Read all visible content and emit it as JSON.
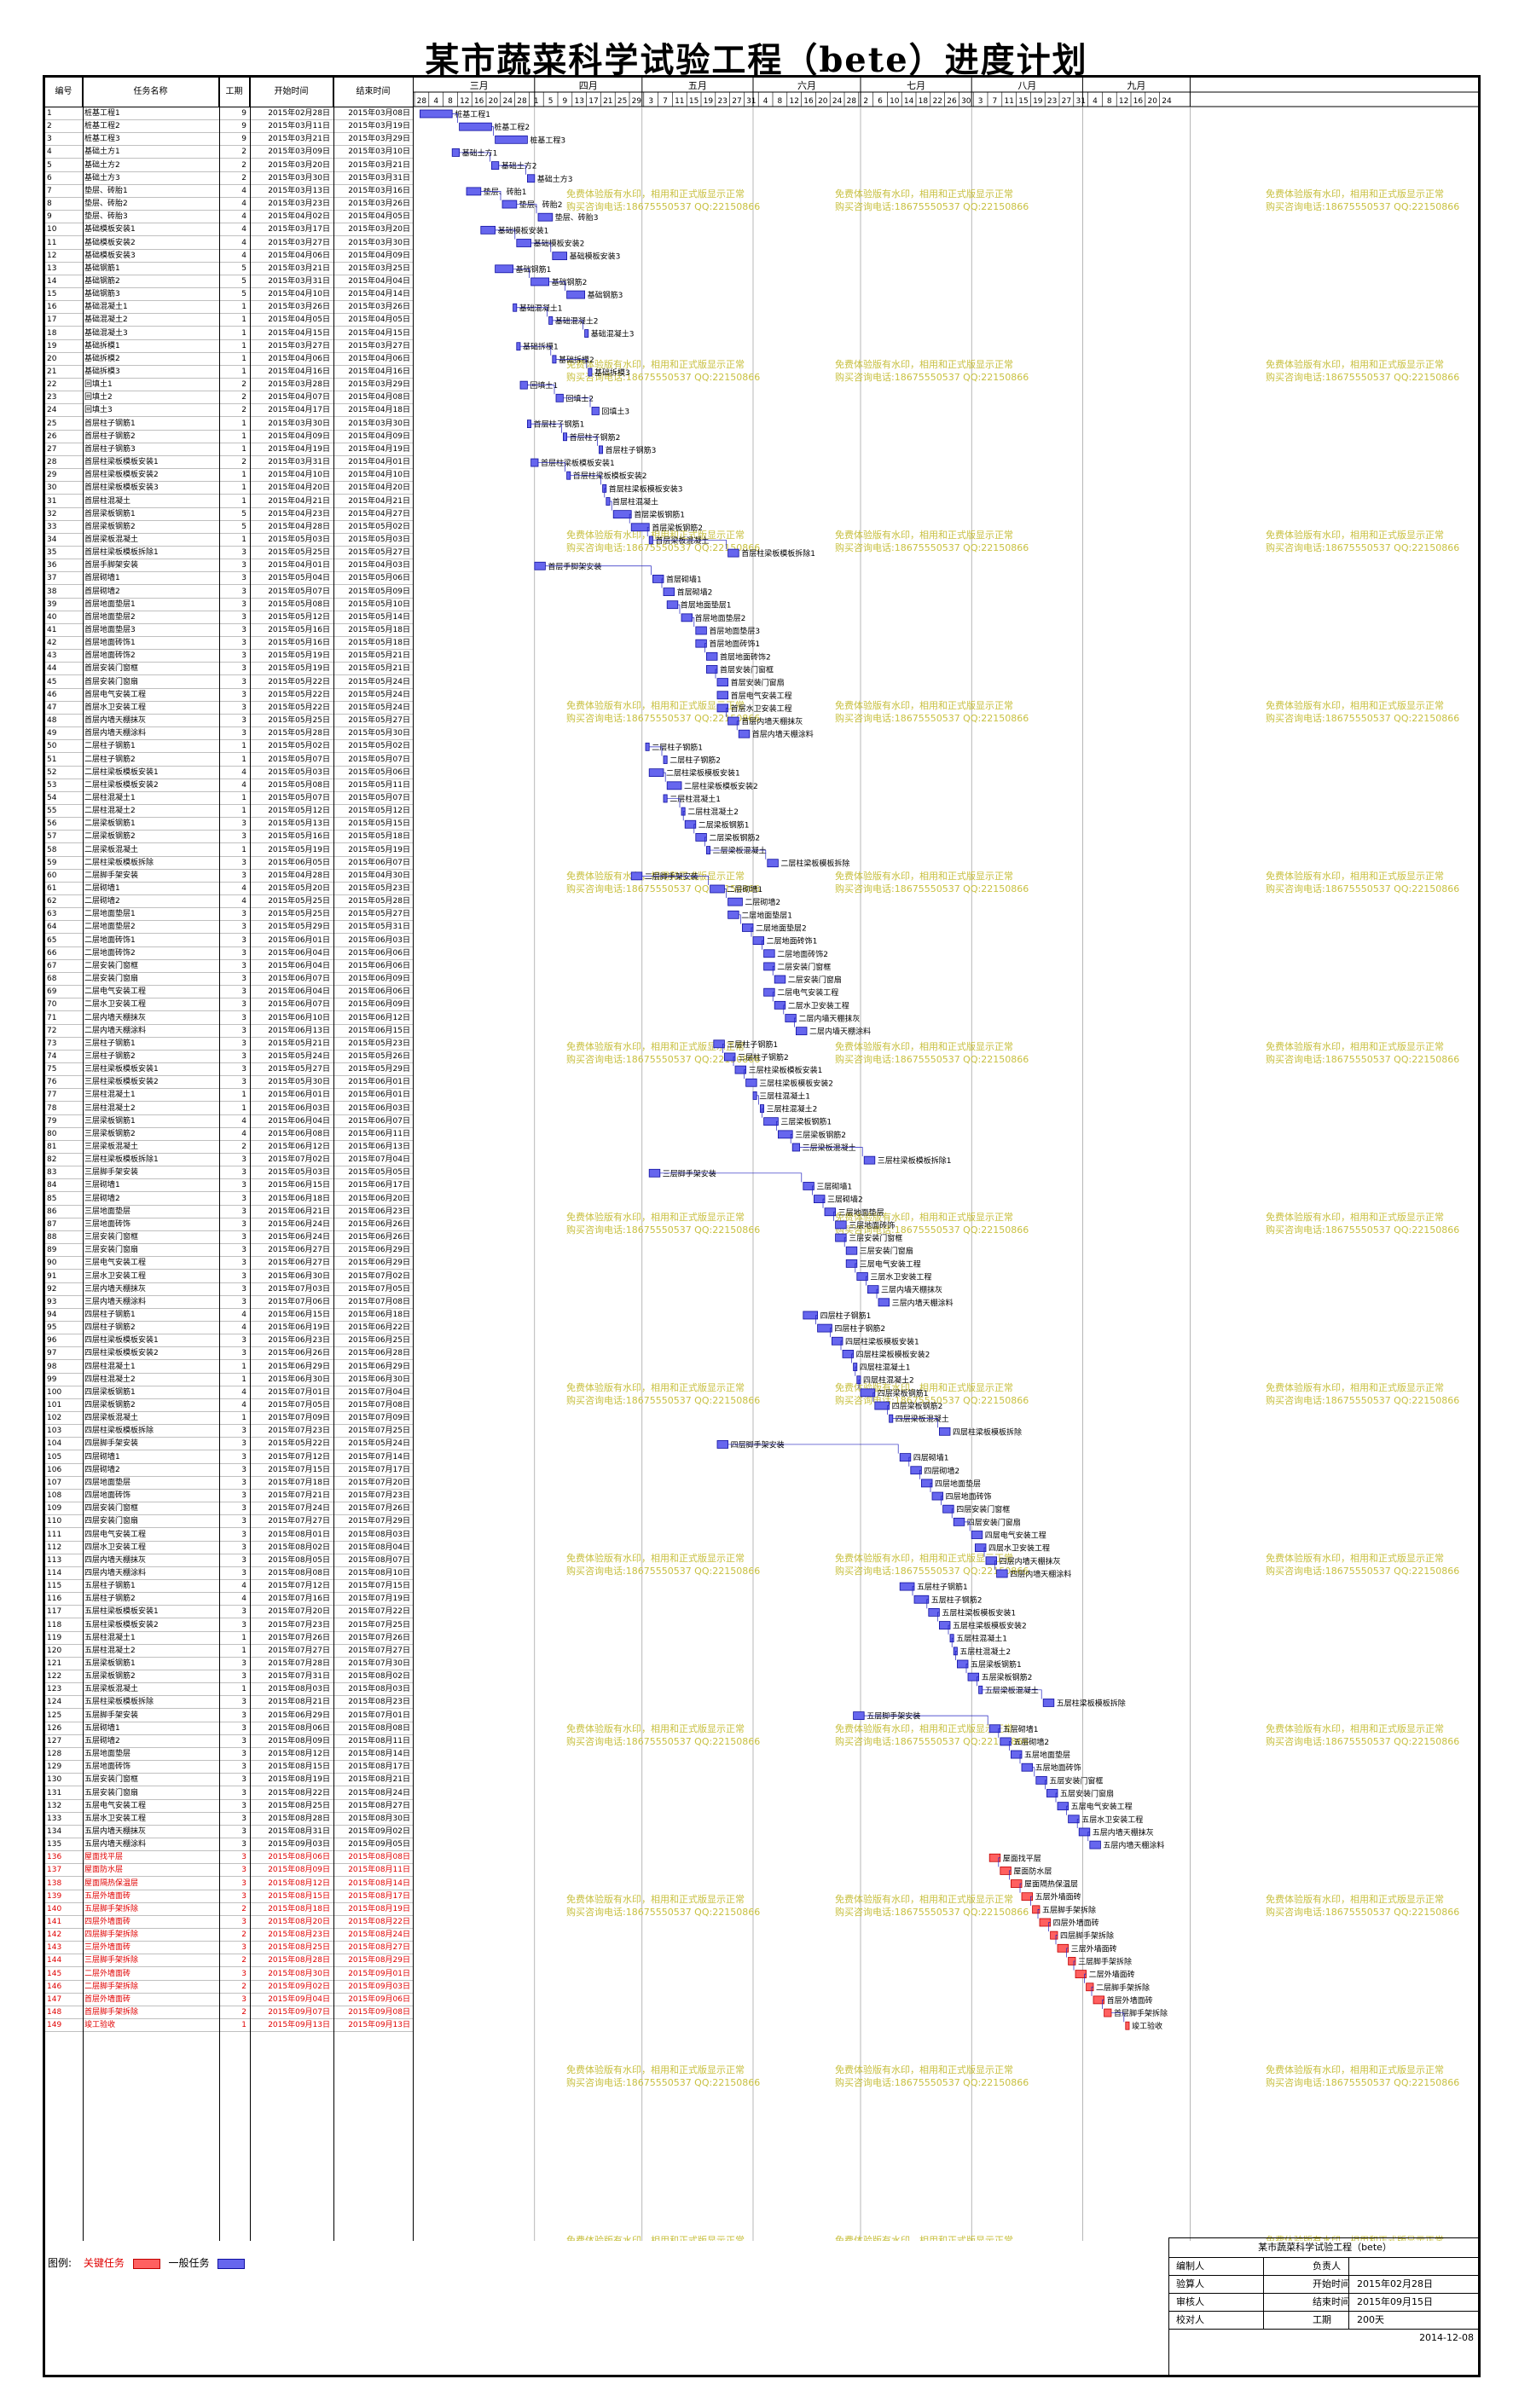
{
  "title": "某市蔬菜科学试验工程（bete）进度计划",
  "columns": {
    "id": "编号",
    "name": "任务名称",
    "dur": "工期",
    "start": "开始时间",
    "end": "结束时间"
  },
  "months": [
    "三月",
    "四月",
    "五月",
    "六月",
    "七月",
    "八月",
    "九月"
  ],
  "day_ticks": [
    "28",
    "4",
    "8",
    "12",
    "16",
    "20",
    "24",
    "28",
    "1",
    "5",
    "9",
    "13",
    "17",
    "21",
    "25",
    "29",
    "3",
    "7",
    "11",
    "15",
    "19",
    "23",
    "27",
    "31",
    "4",
    "8",
    "12",
    "16",
    "20",
    "24",
    "28",
    "2",
    "6",
    "10",
    "14",
    "18",
    "22",
    "26",
    "30",
    "3",
    "7",
    "11",
    "15",
    "19",
    "23",
    "27",
    "31",
    "4",
    "8",
    "12",
    "16",
    "20",
    "24"
  ],
  "watermark": [
    "免费体验版有水印，相用和正式版显示正常",
    "购买咨询电话:18675550537 QQ:22150866"
  ],
  "colors": {
    "normal": "#6666ee",
    "normal_stroke": "#1010a0",
    "critical": "#ff6060",
    "critical_stroke": "#c00000",
    "watermark": "#c8c040",
    "link": "#2020c0"
  },
  "tasks": [
    [
      "1",
      "桩基工程1",
      "9",
      "2015年02月28日",
      "2015年03月08日",
      0
    ],
    [
      "2",
      "桩基工程2",
      "9",
      "2015年03月11日",
      "2015年03月19日",
      0
    ],
    [
      "3",
      "桩基工程3",
      "9",
      "2015年03月21日",
      "2015年03月29日",
      0
    ],
    [
      "4",
      "基础土方1",
      "2",
      "2015年03月09日",
      "2015年03月10日",
      0
    ],
    [
      "5",
      "基础土方2",
      "2",
      "2015年03月20日",
      "2015年03月21日",
      0
    ],
    [
      "6",
      "基础土方3",
      "2",
      "2015年03月30日",
      "2015年03月31日",
      0
    ],
    [
      "7",
      "垫层、砖胎1",
      "4",
      "2015年03月13日",
      "2015年03月16日",
      0
    ],
    [
      "8",
      "垫层、砖胎2",
      "4",
      "2015年03月23日",
      "2015年03月26日",
      0
    ],
    [
      "9",
      "垫层、砖胎3",
      "4",
      "2015年04月02日",
      "2015年04月05日",
      0
    ],
    [
      "10",
      "基础模板安装1",
      "4",
      "2015年03月17日",
      "2015年03月20日",
      0
    ],
    [
      "11",
      "基础模板安装2",
      "4",
      "2015年03月27日",
      "2015年03月30日",
      0
    ],
    [
      "12",
      "基础模板安装3",
      "4",
      "2015年04月06日",
      "2015年04月09日",
      0
    ],
    [
      "13",
      "基础钢筋1",
      "5",
      "2015年03月21日",
      "2015年03月25日",
      0
    ],
    [
      "14",
      "基础钢筋2",
      "5",
      "2015年03月31日",
      "2015年04月04日",
      0
    ],
    [
      "15",
      "基础钢筋3",
      "5",
      "2015年04月10日",
      "2015年04月14日",
      0
    ],
    [
      "16",
      "基础混凝土1",
      "1",
      "2015年03月26日",
      "2015年03月26日",
      0
    ],
    [
      "17",
      "基础混凝土2",
      "1",
      "2015年04月05日",
      "2015年04月05日",
      0
    ],
    [
      "18",
      "基础混凝土3",
      "1",
      "2015年04月15日",
      "2015年04月15日",
      0
    ],
    [
      "19",
      "基础拆模1",
      "1",
      "2015年03月27日",
      "2015年03月27日",
      0
    ],
    [
      "20",
      "基础拆模2",
      "1",
      "2015年04月06日",
      "2015年04月06日",
      0
    ],
    [
      "21",
      "基础拆模3",
      "1",
      "2015年04月16日",
      "2015年04月16日",
      0
    ],
    [
      "22",
      "回填土1",
      "2",
      "2015年03月28日",
      "2015年03月29日",
      0
    ],
    [
      "23",
      "回填土2",
      "2",
      "2015年04月07日",
      "2015年04月08日",
      0
    ],
    [
      "24",
      "回填土3",
      "2",
      "2015年04月17日",
      "2015年04月18日",
      0
    ],
    [
      "25",
      "首层柱子钢筋1",
      "1",
      "2015年03月30日",
      "2015年03月30日",
      0
    ],
    [
      "26",
      "首层柱子钢筋2",
      "1",
      "2015年04月09日",
      "2015年04月09日",
      0
    ],
    [
      "27",
      "首层柱子钢筋3",
      "1",
      "2015年04月19日",
      "2015年04月19日",
      0
    ],
    [
      "28",
      "首层柱梁板模板安装1",
      "2",
      "2015年03月31日",
      "2015年04月01日",
      0
    ],
    [
      "29",
      "首层柱梁板模板安装2",
      "1",
      "2015年04月10日",
      "2015年04月10日",
      0
    ],
    [
      "30",
      "首层柱梁板模板安装3",
      "1",
      "2015年04月20日",
      "2015年04月20日",
      0
    ],
    [
      "31",
      "首层柱混凝土",
      "1",
      "2015年04月21日",
      "2015年04月21日",
      0
    ],
    [
      "32",
      "首层梁板钢筋1",
      "5",
      "2015年04月23日",
      "2015年04月27日",
      0
    ],
    [
      "33",
      "首层梁板钢筋2",
      "5",
      "2015年04月28日",
      "2015年05月02日",
      0
    ],
    [
      "34",
      "首层梁板混凝土",
      "1",
      "2015年05月03日",
      "2015年05月03日",
      0
    ],
    [
      "35",
      "首层柱梁板模板拆除1",
      "3",
      "2015年05月25日",
      "2015年05月27日",
      0
    ],
    [
      "36",
      "首层手脚架安装",
      "3",
      "2015年04月01日",
      "2015年04月03日",
      0
    ],
    [
      "37",
      "首层砌墙1",
      "3",
      "2015年05月04日",
      "2015年05月06日",
      0
    ],
    [
      "38",
      "首层砌墙2",
      "3",
      "2015年05月07日",
      "2015年05月09日",
      0
    ],
    [
      "39",
      "首层地面垫层1",
      "3",
      "2015年05月08日",
      "2015年05月10日",
      0
    ],
    [
      "40",
      "首层地面垫层2",
      "3",
      "2015年05月12日",
      "2015年05月14日",
      0
    ],
    [
      "41",
      "首层地面垫层3",
      "3",
      "2015年05月16日",
      "2015年05月18日",
      0
    ],
    [
      "42",
      "首层地面砖饰1",
      "3",
      "2015年05月16日",
      "2015年05月18日",
      0
    ],
    [
      "43",
      "首层地面砖饰2",
      "3",
      "2015年05月19日",
      "2015年05月21日",
      0
    ],
    [
      "44",
      "首层安装门窗框",
      "3",
      "2015年05月19日",
      "2015年05月21日",
      0
    ],
    [
      "45",
      "首层安装门窗扇",
      "3",
      "2015年05月22日",
      "2015年05月24日",
      0
    ],
    [
      "46",
      "首层电气安装工程",
      "3",
      "2015年05月22日",
      "2015年05月24日",
      0
    ],
    [
      "47",
      "首层水卫安装工程",
      "3",
      "2015年05月22日",
      "2015年05月24日",
      0
    ],
    [
      "48",
      "首层内墙天棚抹灰",
      "3",
      "2015年05月25日",
      "2015年05月27日",
      0
    ],
    [
      "49",
      "首层内墙天棚涂料",
      "3",
      "2015年05月28日",
      "2015年05月30日",
      0
    ],
    [
      "50",
      "二层柱子钢筋1",
      "1",
      "2015年05月02日",
      "2015年05月02日",
      0
    ],
    [
      "51",
      "二层柱子钢筋2",
      "1",
      "2015年05月07日",
      "2015年05月07日",
      0
    ],
    [
      "52",
      "二层柱梁板模板安装1",
      "4",
      "2015年05月03日",
      "2015年05月06日",
      0
    ],
    [
      "53",
      "二层柱梁板模板安装2",
      "4",
      "2015年05月08日",
      "2015年05月11日",
      0
    ],
    [
      "54",
      "二层柱混凝土1",
      "1",
      "2015年05月07日",
      "2015年05月07日",
      0
    ],
    [
      "55",
      "二层柱混凝土2",
      "1",
      "2015年05月12日",
      "2015年05月12日",
      0
    ],
    [
      "56",
      "二层梁板钢筋1",
      "3",
      "2015年05月13日",
      "2015年05月15日",
      0
    ],
    [
      "57",
      "二层梁板钢筋2",
      "3",
      "2015年05月16日",
      "2015年05月18日",
      0
    ],
    [
      "58",
      "二层梁板混凝土",
      "1",
      "2015年05月19日",
      "2015年05月19日",
      0
    ],
    [
      "59",
      "二层柱梁板模板拆除",
      "3",
      "2015年06月05日",
      "2015年06月07日",
      0
    ],
    [
      "60",
      "二层脚手架安装",
      "3",
      "2015年04月28日",
      "2015年04月30日",
      0
    ],
    [
      "61",
      "二层砌墙1",
      "4",
      "2015年05月20日",
      "2015年05月23日",
      0
    ],
    [
      "62",
      "二层砌墙2",
      "4",
      "2015年05月25日",
      "2015年05月28日",
      0
    ],
    [
      "63",
      "二层地面垫层1",
      "3",
      "2015年05月25日",
      "2015年05月27日",
      0
    ],
    [
      "64",
      "二层地面垫层2",
      "3",
      "2015年05月29日",
      "2015年05月31日",
      0
    ],
    [
      "65",
      "二层地面砖饰1",
      "3",
      "2015年06月01日",
      "2015年06月03日",
      0
    ],
    [
      "66",
      "二层地面砖饰2",
      "3",
      "2015年06月04日",
      "2015年06月06日",
      0
    ],
    [
      "67",
      "二层安装门窗框",
      "3",
      "2015年06月04日",
      "2015年06月06日",
      0
    ],
    [
      "68",
      "二层安装门窗扇",
      "3",
      "2015年06月07日",
      "2015年06月09日",
      0
    ],
    [
      "69",
      "二层电气安装工程",
      "3",
      "2015年06月04日",
      "2015年06月06日",
      0
    ],
    [
      "70",
      "二层水卫安装工程",
      "3",
      "2015年06月07日",
      "2015年06月09日",
      0
    ],
    [
      "71",
      "二层内墙天棚抹灰",
      "3",
      "2015年06月10日",
      "2015年06月12日",
      0
    ],
    [
      "72",
      "二层内墙天棚涂料",
      "3",
      "2015年06月13日",
      "2015年06月15日",
      0
    ],
    [
      "73",
      "三层柱子钢筋1",
      "3",
      "2015年05月21日",
      "2015年05月23日",
      0
    ],
    [
      "74",
      "三层柱子钢筋2",
      "3",
      "2015年05月24日",
      "2015年05月26日",
      0
    ],
    [
      "75",
      "三层柱梁板模板安装1",
      "3",
      "2015年05月27日",
      "2015年05月29日",
      0
    ],
    [
      "76",
      "三层柱梁板模板安装2",
      "3",
      "2015年05月30日",
      "2015年06月01日",
      0
    ],
    [
      "77",
      "三层柱混凝土1",
      "1",
      "2015年06月01日",
      "2015年06月01日",
      0
    ],
    [
      "78",
      "三层柱混凝土2",
      "1",
      "2015年06月03日",
      "2015年06月03日",
      0
    ],
    [
      "79",
      "三层梁板钢筋1",
      "4",
      "2015年06月04日",
      "2015年06月07日",
      0
    ],
    [
      "80",
      "三层梁板钢筋2",
      "4",
      "2015年06月08日",
      "2015年06月11日",
      0
    ],
    [
      "81",
      "三层梁板混凝土",
      "2",
      "2015年06月12日",
      "2015年06月13日",
      0
    ],
    [
      "82",
      "三层柱梁板模板拆除1",
      "3",
      "2015年07月02日",
      "2015年07月04日",
      0
    ],
    [
      "83",
      "三层脚手架安装",
      "3",
      "2015年05月03日",
      "2015年05月05日",
      0
    ],
    [
      "84",
      "三层砌墙1",
      "3",
      "2015年06月15日",
      "2015年06月17日",
      0
    ],
    [
      "85",
      "三层砌墙2",
      "3",
      "2015年06月18日",
      "2015年06月20日",
      0
    ],
    [
      "86",
      "三层地面垫层",
      "3",
      "2015年06月21日",
      "2015年06月23日",
      0
    ],
    [
      "87",
      "三层地面砖饰",
      "3",
      "2015年06月24日",
      "2015年06月26日",
      0
    ],
    [
      "88",
      "三层安装门窗框",
      "3",
      "2015年06月24日",
      "2015年06月26日",
      0
    ],
    [
      "89",
      "三层安装门窗扇",
      "3",
      "2015年06月27日",
      "2015年06月29日",
      0
    ],
    [
      "90",
      "三层电气安装工程",
      "3",
      "2015年06月27日",
      "2015年06月29日",
      0
    ],
    [
      "91",
      "三层水卫安装工程",
      "3",
      "2015年06月30日",
      "2015年07月02日",
      0
    ],
    [
      "92",
      "三层内墙天棚抹灰",
      "3",
      "2015年07月03日",
      "2015年07月05日",
      0
    ],
    [
      "93",
      "三层内墙天棚涂料",
      "3",
      "2015年07月06日",
      "2015年07月08日",
      0
    ],
    [
      "94",
      "四层柱子钢筋1",
      "4",
      "2015年06月15日",
      "2015年06月18日",
      0
    ],
    [
      "95",
      "四层柱子钢筋2",
      "4",
      "2015年06月19日",
      "2015年06月22日",
      0
    ],
    [
      "96",
      "四层柱梁板模板安装1",
      "3",
      "2015年06月23日",
      "2015年06月25日",
      0
    ],
    [
      "97",
      "四层柱梁板模板安装2",
      "3",
      "2015年06月26日",
      "2015年06月28日",
      0
    ],
    [
      "98",
      "四层柱混凝土1",
      "1",
      "2015年06月29日",
      "2015年06月29日",
      0
    ],
    [
      "99",
      "四层柱混凝土2",
      "1",
      "2015年06月30日",
      "2015年06月30日",
      0
    ],
    [
      "100",
      "四层梁板钢筋1",
      "4",
      "2015年07月01日",
      "2015年07月04日",
      0
    ],
    [
      "101",
      "四层梁板钢筋2",
      "4",
      "2015年07月05日",
      "2015年07月08日",
      0
    ],
    [
      "102",
      "四层梁板混凝土",
      "1",
      "2015年07月09日",
      "2015年07月09日",
      0
    ],
    [
      "103",
      "四层柱梁板模板拆除",
      "3",
      "2015年07月23日",
      "2015年07月25日",
      0
    ],
    [
      "104",
      "四层脚手架安装",
      "3",
      "2015年05月22日",
      "2015年05月24日",
      0
    ],
    [
      "105",
      "四层砌墙1",
      "3",
      "2015年07月12日",
      "2015年07月14日",
      0
    ],
    [
      "106",
      "四层砌墙2",
      "3",
      "2015年07月15日",
      "2015年07月17日",
      0
    ],
    [
      "107",
      "四层地面垫层",
      "3",
      "2015年07月18日",
      "2015年07月20日",
      0
    ],
    [
      "108",
      "四层地面砖饰",
      "3",
      "2015年07月21日",
      "2015年07月23日",
      0
    ],
    [
      "109",
      "四层安装门窗框",
      "3",
      "2015年07月24日",
      "2015年07月26日",
      0
    ],
    [
      "110",
      "四层安装门窗扇",
      "3",
      "2015年07月27日",
      "2015年07月29日",
      0
    ],
    [
      "111",
      "四层电气安装工程",
      "3",
      "2015年08月01日",
      "2015年08月03日",
      0
    ],
    [
      "112",
      "四层水卫安装工程",
      "3",
      "2015年08月02日",
      "2015年08月04日",
      0
    ],
    [
      "113",
      "四层内墙天棚抹灰",
      "3",
      "2015年08月05日",
      "2015年08月07日",
      0
    ],
    [
      "114",
      "四层内墙天棚涂料",
      "3",
      "2015年08月08日",
      "2015年08月10日",
      0
    ],
    [
      "115",
      "五层柱子钢筋1",
      "4",
      "2015年07月12日",
      "2015年07月15日",
      0
    ],
    [
      "116",
      "五层柱子钢筋2",
      "4",
      "2015年07月16日",
      "2015年07月19日",
      0
    ],
    [
      "117",
      "五层柱梁板模板安装1",
      "3",
      "2015年07月20日",
      "2015年07月22日",
      0
    ],
    [
      "118",
      "五层柱梁板模板安装2",
      "3",
      "2015年07月23日",
      "2015年07月25日",
      0
    ],
    [
      "119",
      "五层柱混凝土1",
      "1",
      "2015年07月26日",
      "2015年07月26日",
      0
    ],
    [
      "120",
      "五层柱混凝土2",
      "1",
      "2015年07月27日",
      "2015年07月27日",
      0
    ],
    [
      "121",
      "五层梁板钢筋1",
      "3",
      "2015年07月28日",
      "2015年07月30日",
      0
    ],
    [
      "122",
      "五层梁板钢筋2",
      "3",
      "2015年07月31日",
      "2015年08月02日",
      0
    ],
    [
      "123",
      "五层梁板混凝土",
      "1",
      "2015年08月03日",
      "2015年08月03日",
      0
    ],
    [
      "124",
      "五层柱梁板模板拆除",
      "3",
      "2015年08月21日",
      "2015年08月23日",
      0
    ],
    [
      "125",
      "五层脚手架安装",
      "3",
      "2015年06月29日",
      "2015年07月01日",
      0
    ],
    [
      "126",
      "五层砌墙1",
      "3",
      "2015年08月06日",
      "2015年08月08日",
      0
    ],
    [
      "127",
      "五层砌墙2",
      "3",
      "2015年08月09日",
      "2015年08月11日",
      0
    ],
    [
      "128",
      "五层地面垫层",
      "3",
      "2015年08月12日",
      "2015年08月14日",
      0
    ],
    [
      "129",
      "五层地面砖饰",
      "3",
      "2015年08月15日",
      "2015年08月17日",
      0
    ],
    [
      "130",
      "五层安装门窗框",
      "3",
      "2015年08月19日",
      "2015年08月21日",
      0
    ],
    [
      "131",
      "五层安装门窗扇",
      "3",
      "2015年08月22日",
      "2015年08月24日",
      0
    ],
    [
      "132",
      "五层电气安装工程",
      "3",
      "2015年08月25日",
      "2015年08月27日",
      0
    ],
    [
      "133",
      "五层水卫安装工程",
      "3",
      "2015年08月28日",
      "2015年08月30日",
      0
    ],
    [
      "134",
      "五层内墙天棚抹灰",
      "3",
      "2015年08月31日",
      "2015年09月02日",
      0
    ],
    [
      "135",
      "五层内墙天棚涂料",
      "3",
      "2015年09月03日",
      "2015年09月05日",
      0
    ],
    [
      "136",
      "屋面找平层",
      "3",
      "2015年08月06日",
      "2015年08月08日",
      1
    ],
    [
      "137",
      "屋面防水层",
      "3",
      "2015年08月09日",
      "2015年08月11日",
      1
    ],
    [
      "138",
      "屋面隔热保温层",
      "3",
      "2015年08月12日",
      "2015年08月14日",
      1
    ],
    [
      "139",
      "五层外墙面砖",
      "3",
      "2015年08月15日",
      "2015年08月17日",
      1
    ],
    [
      "140",
      "五层脚手架拆除",
      "2",
      "2015年08月18日",
      "2015年08月19日",
      1
    ],
    [
      "141",
      "四层外墙面砖",
      "3",
      "2015年08月20日",
      "2015年08月22日",
      1
    ],
    [
      "142",
      "四层脚手架拆除",
      "2",
      "2015年08月23日",
      "2015年08月24日",
      1
    ],
    [
      "143",
      "三层外墙面砖",
      "3",
      "2015年08月25日",
      "2015年08月27日",
      1
    ],
    [
      "144",
      "三层脚手架拆除",
      "2",
      "2015年08月28日",
      "2015年08月29日",
      1
    ],
    [
      "145",
      "二层外墙面砖",
      "3",
      "2015年08月30日",
      "2015年09月01日",
      1
    ],
    [
      "146",
      "二层脚手架拆除",
      "2",
      "2015年09月02日",
      "2015年09月03日",
      1
    ],
    [
      "147",
      "首层外墙面砖",
      "3",
      "2015年09月04日",
      "2015年09月06日",
      1
    ],
    [
      "148",
      "首层脚手架拆除",
      "2",
      "2015年09月07日",
      "2015年09月08日",
      1
    ],
    [
      "149",
      "竣工验收",
      "1",
      "2015年09月13日",
      "2015年09月13日",
      1
    ]
  ],
  "legend": {
    "label": "图例:",
    "critical": "关键任务",
    "normal": "一般任务"
  },
  "title_block": {
    "title": "某市蔬菜科学试验工程（bete）",
    "rows": [
      {
        "k": "编制人",
        "k2": "负责人",
        "v": ""
      },
      {
        "k": "验算人",
        "k2": "开始时间",
        "v": "2015年02月28日"
      },
      {
        "k": "审核人",
        "k2": "结束时间",
        "v": "2015年09月15日"
      },
      {
        "k": "校对人",
        "k2": "工期",
        "v": "200天"
      }
    ],
    "date": "2014-12-08"
  }
}
